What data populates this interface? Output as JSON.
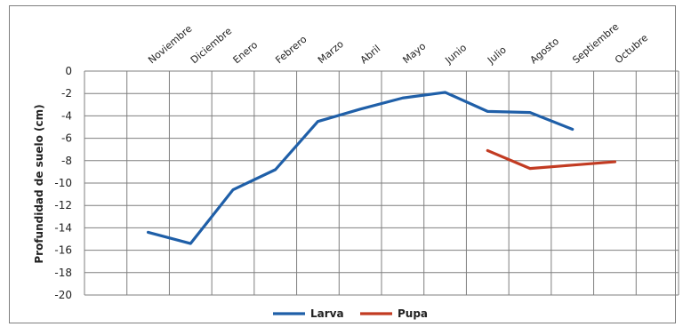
{
  "chart_data": {
    "type": "line",
    "categories": [
      "Noviembre",
      "Diciembre",
      "Enero",
      "Febrero",
      "Marzo",
      "Abril",
      "Mayo",
      "Junio",
      "Julio",
      "Agosto",
      "Septiembre",
      "Octubre"
    ],
    "series": [
      {
        "name": "Larva",
        "color": "#1f5fa8",
        "values": [
          -14.4,
          -15.4,
          -10.6,
          -8.8,
          -4.5,
          -3.4,
          -2.4,
          -1.9,
          -3.6,
          -3.7,
          -5.2,
          null
        ]
      },
      {
        "name": "Pupa",
        "color": "#c23b22",
        "values": [
          null,
          null,
          null,
          null,
          null,
          null,
          null,
          null,
          -7.1,
          -8.7,
          -8.4,
          -8.1
        ]
      }
    ],
    "ylabel": "Profundidad de suelo (cm)",
    "ylim": [
      -20,
      0
    ],
    "yticks": [
      0,
      -2,
      -4,
      -6,
      -8,
      -10,
      -12,
      -14,
      -16,
      -18,
      -20
    ],
    "grid": true,
    "legend": "bottom"
  }
}
